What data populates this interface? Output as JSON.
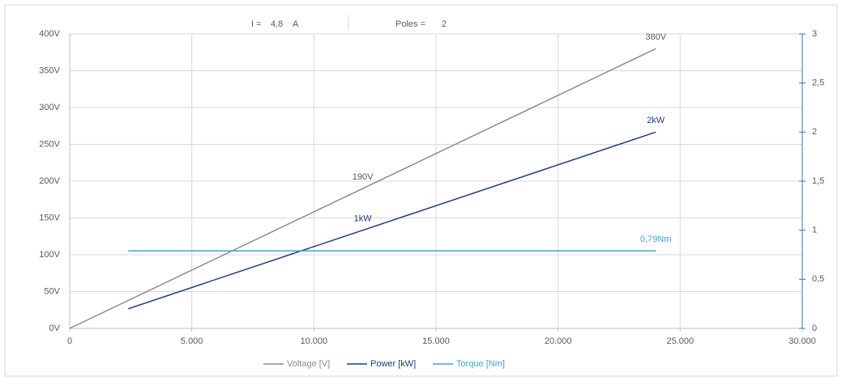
{
  "chart_data": {
    "type": "line",
    "info": [
      {
        "label": "I =",
        "value": "4,8",
        "unit": "A"
      },
      {
        "label": "Poles =",
        "value": "2"
      }
    ],
    "xlim": [
      0,
      30000
    ],
    "xticks": [
      0,
      {
        "value": 5000,
        "label": "5.000"
      },
      {
        "value": 10000,
        "label": "10.000"
      },
      {
        "value": 15000,
        "label": "15.000"
      },
      {
        "value": 20000,
        "label": "20.000"
      },
      {
        "value": 25000,
        "label": "25.000"
      },
      {
        "value": 30000,
        "label": "30.000"
      }
    ],
    "ylim": [
      0,
      400
    ],
    "yticks": [
      {
        "value": 0,
        "label": "0V"
      },
      {
        "value": 50,
        "label": "50V"
      },
      {
        "value": 100,
        "label": "100V"
      },
      {
        "value": 150,
        "label": "150V"
      },
      {
        "value": 200,
        "label": "200V"
      },
      {
        "value": 250,
        "label": "250V"
      },
      {
        "value": 300,
        "label": "300V"
      },
      {
        "value": 350,
        "label": "350V"
      },
      {
        "value": 400,
        "label": "400V"
      }
    ],
    "y2lim": [
      0,
      3
    ],
    "y2ticks": [
      0,
      {
        "value": 0.5,
        "label": "0,5"
      },
      1,
      {
        "value": 1.5,
        "label": "1,5"
      },
      2,
      {
        "value": 2.5,
        "label": "2,5"
      },
      3
    ],
    "grid": true,
    "legend": "bottom",
    "series": [
      {
        "name": "Voltage [V]",
        "color": "#8c8c8c",
        "x": [
          0,
          24000
        ],
        "values": [
          0,
          380
        ]
      },
      {
        "name": "Power [kW]",
        "color": "#1f3c88",
        "axis": "y2",
        "x": [
          2400,
          24000
        ],
        "values": [
          0.2,
          2
        ]
      },
      {
        "name": "Torque [Nm]",
        "color": "#3aa6c8",
        "axis": "y2",
        "x": [
          2400,
          24000
        ],
        "values": [
          0.79,
          0.79
        ]
      }
    ],
    "annotations": [
      {
        "text": "380V",
        "x": 24000,
        "y": 380,
        "series": 0
      },
      {
        "text": "190V",
        "x": 12000,
        "y": 190,
        "series": 0
      },
      {
        "text": "2kW",
        "x": 24000,
        "y": 2,
        "series": 1
      },
      {
        "text": "1kW",
        "x": 12000,
        "y": 1,
        "series": 1
      },
      {
        "text": "0,79Nm",
        "x": 24000,
        "y": 0.79,
        "series": 2
      }
    ]
  }
}
